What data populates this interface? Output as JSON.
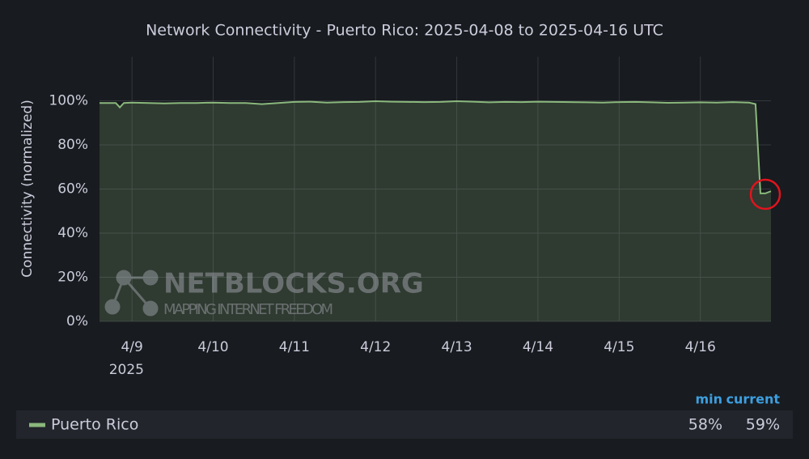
{
  "chart_data": {
    "type": "line",
    "title": "Network Connectivity - Puerto Rico: 2025-04-08 to 2025-04-16 UTC",
    "y_label": "Connectivity (normalized)",
    "x_sublabel": "2025",
    "x": [
      8.6,
      8.8,
      8.85,
      8.9,
      9.0,
      9.2,
      9.4,
      9.6,
      9.8,
      10.0,
      10.2,
      10.4,
      10.6,
      10.8,
      11.0,
      11.2,
      11.4,
      11.6,
      11.8,
      12.0,
      12.2,
      12.4,
      12.6,
      12.8,
      13.0,
      13.2,
      13.4,
      13.6,
      13.8,
      14.0,
      14.2,
      14.4,
      14.6,
      14.8,
      15.0,
      15.2,
      15.4,
      15.6,
      15.8,
      16.0,
      16.2,
      16.4,
      16.6,
      16.68,
      16.74,
      16.8,
      16.87
    ],
    "series": [
      {
        "name": "Puerto Rico",
        "color": "#8ab87c",
        "values": [
          99,
          99,
          97,
          99,
          99.2,
          99,
          98.8,
          99,
          99,
          99.2,
          99,
          99,
          98.5,
          99,
          99.5,
          99.6,
          99.2,
          99.4,
          99.5,
          99.8,
          99.6,
          99.5,
          99.4,
          99.5,
          99.8,
          99.6,
          99.3,
          99.5,
          99.4,
          99.6,
          99.5,
          99.4,
          99.3,
          99.2,
          99.4,
          99.5,
          99.3,
          99.1,
          99.2,
          99.3,
          99.2,
          99.4,
          99.2,
          98.5,
          58,
          58,
          59
        ]
      }
    ],
    "xlim": [
      8.6,
      16.87
    ],
    "xticks": [
      {
        "value": 9,
        "label": "4/9"
      },
      {
        "value": 10,
        "label": "4/10"
      },
      {
        "value": 11,
        "label": "4/11"
      },
      {
        "value": 12,
        "label": "4/12"
      },
      {
        "value": 13,
        "label": "4/13"
      },
      {
        "value": 14,
        "label": "4/14"
      },
      {
        "value": 15,
        "label": "4/15"
      },
      {
        "value": 16,
        "label": "4/16"
      }
    ],
    "ylim": [
      0,
      120
    ],
    "yticks": [
      {
        "value": 0,
        "label": "0%"
      },
      {
        "value": 20,
        "label": "20%"
      },
      {
        "value": 40,
        "label": "40%"
      },
      {
        "value": 60,
        "label": "60%"
      },
      {
        "value": 80,
        "label": "80%"
      },
      {
        "value": 100,
        "label": "100%"
      }
    ],
    "grid": true,
    "legend_stats": [
      {
        "name": "min",
        "value": 58,
        "label": "58%"
      },
      {
        "name": "current",
        "value": 59,
        "label": "59%"
      }
    ],
    "watermark": {
      "brand": "NETBLOCKS.ORG",
      "tagline": "MAPPING INTERNET FREEDOM"
    }
  }
}
